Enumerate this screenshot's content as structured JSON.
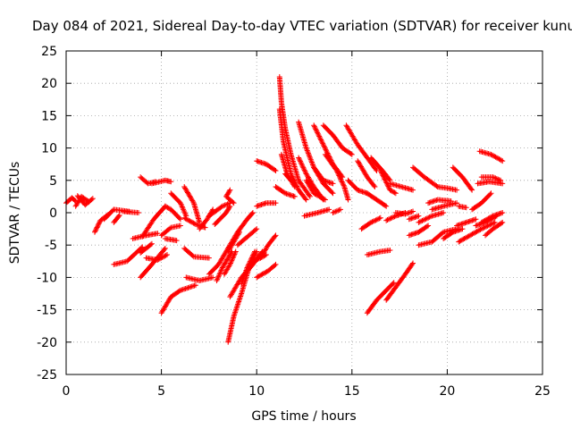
{
  "chart_data": {
    "type": "scatter",
    "title": "Day 084 of 2021, Sidereal Day-to-day VTEC variation (SDTVAR) for receiver kunu",
    "xlabel": "GPS time / hours",
    "ylabel": "SDTVAR / TECUs",
    "xlim": [
      0,
      25
    ],
    "ylim": [
      -25,
      25
    ],
    "x_ticks": [
      0,
      5,
      10,
      15,
      20,
      25
    ],
    "y_ticks": [
      -25,
      -20,
      -15,
      -10,
      -5,
      0,
      5,
      10,
      15,
      20,
      25
    ],
    "grid": true,
    "marker": "+",
    "color": "#ff0000",
    "tracks": [
      [
        [
          0.0,
          1.5
        ],
        [
          0.3,
          2.3
        ],
        [
          0.5,
          1.8
        ]
      ],
      [
        [
          0.5,
          1.0
        ],
        [
          0.8,
          2.5
        ],
        [
          1.2,
          1.7
        ]
      ],
      [
        [
          0.6,
          2.6
        ],
        [
          1.0,
          1.2
        ],
        [
          1.4,
          2.2
        ]
      ],
      [
        [
          1.5,
          -3.0
        ],
        [
          1.8,
          -1.2
        ],
        [
          2.2,
          -0.3
        ]
      ],
      [
        [
          2.0,
          -1.0
        ],
        [
          2.5,
          0.5
        ],
        [
          3.3,
          0.2
        ]
      ],
      [
        [
          2.5,
          -1.5
        ],
        [
          2.8,
          -0.4
        ]
      ],
      [
        [
          3.0,
          0.2
        ],
        [
          3.8,
          0.0
        ]
      ],
      [
        [
          2.5,
          -8.0
        ],
        [
          3.2,
          -7.5
        ],
        [
          4.0,
          -5.3
        ]
      ],
      [
        [
          3.5,
          -4.0
        ],
        [
          4.2,
          -3.5
        ],
        [
          4.8,
          -3.2
        ]
      ],
      [
        [
          4.0,
          -3.7
        ],
        [
          4.6,
          -1.0
        ],
        [
          5.2,
          1.0
        ]
      ],
      [
        [
          3.9,
          -10.0
        ],
        [
          4.5,
          -8.0
        ],
        [
          5.2,
          -5.5
        ]
      ],
      [
        [
          3.9,
          -6.2
        ],
        [
          4.5,
          -4.8
        ]
      ],
      [
        [
          3.9,
          5.5
        ],
        [
          4.3,
          4.5
        ],
        [
          4.7,
          4.8
        ]
      ],
      [
        [
          4.5,
          4.5
        ],
        [
          5.2,
          5.0
        ],
        [
          5.5,
          4.8
        ]
      ],
      [
        [
          4.2,
          -7.0
        ],
        [
          4.8,
          -7.3
        ],
        [
          5.3,
          -6.5
        ]
      ],
      [
        [
          5.0,
          -3.5
        ],
        [
          5.5,
          -2.3
        ],
        [
          6.0,
          -2.0
        ]
      ],
      [
        [
          5.2,
          -4.0
        ],
        [
          5.8,
          -4.3
        ]
      ],
      [
        [
          5.0,
          -15.5
        ],
        [
          5.5,
          -13.0
        ],
        [
          6.0,
          -12.0
        ],
        [
          6.8,
          -11.2
        ]
      ],
      [
        [
          5.2,
          1.0
        ],
        [
          5.5,
          0.5
        ],
        [
          6.0,
          -1.0
        ]
      ],
      [
        [
          5.5,
          3.0
        ],
        [
          6.0,
          1.5
        ],
        [
          6.3,
          -0.5
        ]
      ],
      [
        [
          6.2,
          -0.8
        ],
        [
          6.8,
          -1.8
        ],
        [
          7.3,
          -2.3
        ]
      ],
      [
        [
          6.2,
          4.0
        ],
        [
          6.7,
          1.5
        ],
        [
          7.0,
          -1.5
        ]
      ],
      [
        [
          6.2,
          -5.5
        ],
        [
          6.7,
          -6.8
        ],
        [
          7.5,
          -7.0
        ]
      ],
      [
        [
          6.3,
          -10.0
        ],
        [
          7.0,
          -10.5
        ],
        [
          7.7,
          -10.0
        ]
      ],
      [
        [
          7.0,
          -2.5
        ],
        [
          7.4,
          -1.0
        ],
        [
          7.7,
          0.5
        ]
      ],
      [
        [
          7.5,
          -0.5
        ],
        [
          8.2,
          1.0
        ],
        [
          8.6,
          1.5
        ]
      ],
      [
        [
          7.8,
          -1.8
        ],
        [
          8.4,
          0.0
        ],
        [
          8.6,
          1.0
        ]
      ],
      [
        [
          7.9,
          -10.5
        ],
        [
          8.2,
          -8.5
        ],
        [
          8.7,
          -6.0
        ]
      ],
      [
        [
          7.5,
          -9.5
        ],
        [
          8.0,
          -8.0
        ],
        [
          8.5,
          -5.5
        ]
      ],
      [
        [
          8.3,
          -9.5
        ],
        [
          8.6,
          -8.0
        ],
        [
          8.9,
          -6.0
        ]
      ],
      [
        [
          8.8,
          1.5
        ],
        [
          8.4,
          2.5
        ],
        [
          8.6,
          3.5
        ]
      ],
      [
        [
          8.5,
          -6.0
        ],
        [
          8.8,
          -4.5
        ],
        [
          9.1,
          -3.0
        ]
      ],
      [
        [
          8.5,
          -20.0
        ],
        [
          8.8,
          -16.0
        ],
        [
          9.2,
          -12.5
        ],
        [
          9.6,
          -8.5
        ],
        [
          10.0,
          -6.0
        ]
      ],
      [
        [
          8.6,
          -13.0
        ],
        [
          9.2,
          -10.0
        ],
        [
          9.8,
          -8.0
        ],
        [
          10.3,
          -6.0
        ]
      ],
      [
        [
          9.2,
          -11.0
        ],
        [
          9.5,
          -8.5
        ],
        [
          9.9,
          -6.0
        ]
      ],
      [
        [
          9.0,
          -5.0
        ],
        [
          9.6,
          -3.5
        ],
        [
          10.0,
          -2.5
        ]
      ],
      [
        [
          8.5,
          -5.5
        ],
        [
          9.0,
          -3.0
        ],
        [
          9.5,
          -1.0
        ],
        [
          9.8,
          0.0
        ]
      ],
      [
        [
          9.8,
          -7.5
        ],
        [
          10.2,
          -7.0
        ],
        [
          10.5,
          -6.5
        ]
      ],
      [
        [
          10.0,
          -10.0
        ],
        [
          10.6,
          -9.0
        ],
        [
          11.0,
          -8.0
        ]
      ],
      [
        [
          10.2,
          -7.0
        ],
        [
          10.6,
          -5.0
        ],
        [
          11.0,
          -3.5
        ]
      ],
      [
        [
          10.0,
          1.0
        ],
        [
          10.5,
          1.5
        ],
        [
          11.0,
          1.5
        ]
      ],
      [
        [
          10.0,
          8.0
        ],
        [
          10.5,
          7.5
        ],
        [
          11.0,
          6.5
        ]
      ],
      [
        [
          11.2,
          21.0
        ],
        [
          11.3,
          17.0
        ],
        [
          11.5,
          13.0
        ],
        [
          11.8,
          9.0
        ],
        [
          12.2,
          5.0
        ],
        [
          12.8,
          2.5
        ]
      ],
      [
        [
          11.2,
          16.0
        ],
        [
          11.4,
          11.0
        ],
        [
          11.8,
          6.0
        ],
        [
          12.2,
          3.5
        ],
        [
          12.6,
          2.0
        ]
      ],
      [
        [
          11.3,
          9.0
        ],
        [
          11.6,
          6.0
        ],
        [
          12.0,
          4.0
        ]
      ],
      [
        [
          11.0,
          4.0
        ],
        [
          11.5,
          3.0
        ],
        [
          12.0,
          2.5
        ]
      ],
      [
        [
          11.5,
          6.0
        ],
        [
          11.8,
          5.0
        ]
      ],
      [
        [
          12.2,
          14.0
        ],
        [
          12.6,
          10.0
        ],
        [
          13.0,
          7.0
        ],
        [
          13.5,
          4.5
        ],
        [
          14.0,
          3.0
        ]
      ],
      [
        [
          12.2,
          8.5
        ],
        [
          12.6,
          6.0
        ],
        [
          13.0,
          4.0
        ],
        [
          13.5,
          2.0
        ]
      ],
      [
        [
          12.6,
          5.0
        ],
        [
          13.0,
          3.0
        ],
        [
          13.6,
          2.0
        ]
      ],
      [
        [
          13.0,
          13.5
        ],
        [
          13.5,
          10.5
        ],
        [
          14.0,
          7.5
        ],
        [
          14.5,
          5.5
        ]
      ],
      [
        [
          13.6,
          9.0
        ],
        [
          14.2,
          6.5
        ],
        [
          14.6,
          4.0
        ],
        [
          14.8,
          2.0
        ]
      ],
      [
        [
          13.0,
          7.0
        ],
        [
          13.5,
          5.0
        ],
        [
          14.0,
          4.5
        ]
      ],
      [
        [
          13.5,
          13.5
        ],
        [
          14.0,
          12.0
        ],
        [
          14.5,
          10.0
        ],
        [
          15.0,
          9.0
        ]
      ],
      [
        [
          12.5,
          -0.5
        ],
        [
          13.2,
          0.0
        ],
        [
          13.8,
          0.5
        ]
      ],
      [
        [
          14.0,
          0.0
        ],
        [
          14.4,
          0.5
        ]
      ],
      [
        [
          14.7,
          13.5
        ],
        [
          15.3,
          10.5
        ],
        [
          15.8,
          8.5
        ],
        [
          16.3,
          6.5
        ]
      ],
      [
        [
          14.8,
          5.0
        ],
        [
          15.3,
          3.5
        ],
        [
          15.8,
          3.0
        ]
      ],
      [
        [
          15.3,
          8.0
        ],
        [
          15.8,
          5.5
        ],
        [
          16.2,
          4.0
        ]
      ],
      [
        [
          15.8,
          3.0
        ],
        [
          16.3,
          2.0
        ],
        [
          16.8,
          1.0
        ]
      ],
      [
        [
          16.0,
          8.5
        ],
        [
          16.6,
          6.5
        ],
        [
          17.0,
          5.0
        ]
      ],
      [
        [
          16.5,
          6.5
        ],
        [
          17.0,
          3.5
        ],
        [
          17.3,
          3.0
        ]
      ],
      [
        [
          15.5,
          -2.5
        ],
        [
          16.0,
          -1.5
        ],
        [
          16.5,
          -0.8
        ]
      ],
      [
        [
          15.8,
          -15.5
        ],
        [
          16.3,
          -13.5
        ],
        [
          16.8,
          -12.0
        ],
        [
          17.2,
          -10.8
        ]
      ],
      [
        [
          15.8,
          -6.5
        ],
        [
          16.5,
          -6.0
        ],
        [
          17.0,
          -5.8
        ]
      ],
      [
        [
          16.8,
          -1.2
        ],
        [
          17.3,
          -0.5
        ],
        [
          17.8,
          0.0
        ]
      ],
      [
        [
          16.8,
          -13.5
        ],
        [
          17.3,
          -11.5
        ],
        [
          17.8,
          -9.5
        ],
        [
          18.2,
          -7.8
        ]
      ],
      [
        [
          17.3,
          0.0
        ],
        [
          17.8,
          -0.2
        ],
        [
          18.2,
          0.2
        ]
      ],
      [
        [
          17.0,
          4.5
        ],
        [
          17.6,
          4.0
        ],
        [
          18.2,
          3.5
        ]
      ],
      [
        [
          18.0,
          -1.0
        ],
        [
          18.5,
          -0.5
        ]
      ],
      [
        [
          18.2,
          7.0
        ],
        [
          18.8,
          5.5
        ],
        [
          19.5,
          4.0
        ]
      ],
      [
        [
          18.0,
          -3.5
        ],
        [
          18.5,
          -3.0
        ],
        [
          19.0,
          -2.0
        ]
      ],
      [
        [
          18.5,
          -5.0
        ],
        [
          19.2,
          -4.5
        ],
        [
          19.8,
          -3.0
        ],
        [
          20.5,
          -2.5
        ]
      ],
      [
        [
          19.0,
          1.5
        ],
        [
          19.5,
          2.0
        ],
        [
          20.2,
          1.8
        ]
      ],
      [
        [
          19.2,
          0.5
        ],
        [
          19.8,
          1.0
        ],
        [
          20.5,
          1.5
        ]
      ],
      [
        [
          18.5,
          -1.5
        ],
        [
          19.2,
          -0.5
        ],
        [
          19.8,
          0.0
        ]
      ],
      [
        [
          19.5,
          4.0
        ],
        [
          20.0,
          3.8
        ],
        [
          20.5,
          3.5
        ]
      ],
      [
        [
          19.8,
          -4.0
        ],
        [
          20.3,
          -3.0
        ],
        [
          20.8,
          -2.5
        ]
      ],
      [
        [
          20.3,
          7.0
        ],
        [
          20.8,
          5.5
        ],
        [
          21.3,
          3.5
        ]
      ],
      [
        [
          20.5,
          -2.0
        ],
        [
          21.0,
          -1.5
        ],
        [
          21.5,
          -1.0
        ]
      ],
      [
        [
          20.6,
          1.0
        ],
        [
          21.0,
          0.8
        ]
      ],
      [
        [
          20.6,
          -4.5
        ],
        [
          21.2,
          -3.5
        ],
        [
          21.8,
          -2.5
        ],
        [
          22.5,
          -1.5
        ]
      ],
      [
        [
          21.3,
          0.5
        ],
        [
          21.8,
          1.5
        ],
        [
          22.3,
          3.0
        ]
      ],
      [
        [
          21.5,
          -2.0
        ],
        [
          22.0,
          -1.5
        ],
        [
          22.6,
          -0.5
        ]
      ],
      [
        [
          21.8,
          5.5
        ],
        [
          22.4,
          5.5
        ],
        [
          22.8,
          5.0
        ]
      ],
      [
        [
          21.7,
          9.5
        ],
        [
          22.3,
          9.0
        ],
        [
          22.9,
          8.0
        ]
      ],
      [
        [
          21.6,
          4.5
        ],
        [
          22.2,
          4.8
        ],
        [
          22.9,
          4.5
        ]
      ],
      [
        [
          22.0,
          -3.5
        ],
        [
          22.4,
          -2.5
        ],
        [
          22.9,
          -1.5
        ]
      ],
      [
        [
          21.8,
          -1.5
        ],
        [
          22.4,
          -0.5
        ],
        [
          22.9,
          0.0
        ]
      ]
    ]
  }
}
